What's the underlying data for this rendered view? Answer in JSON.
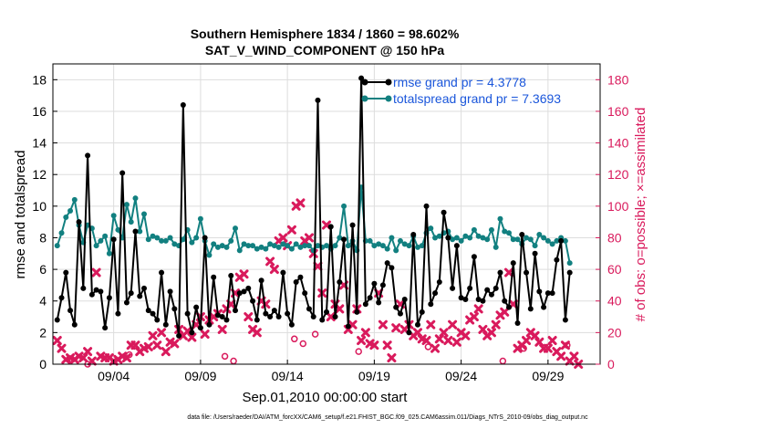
{
  "chart_data": {
    "type": "line",
    "title_line1": "Southern Hemisphere 1834 / 1860 = 98.602%",
    "title_line2": "SAT_V_WIND_COMPONENT @ 150 hPa",
    "xlabel": "Sep.01,2010 00:00:00 start",
    "ylabel": "rmse and totalspread",
    "ylabel_right": "# of obs: o=possible; ×=assimilated",
    "xlim": [
      0,
      31.5
    ],
    "ylim": [
      0,
      19
    ],
    "ylim_right": [
      0,
      190
    ],
    "x_ticks": [
      3.5,
      8.5,
      13.5,
      18.5,
      23.5,
      28.5
    ],
    "x_tick_labels": [
      "09/04",
      "09/09",
      "09/14",
      "09/19",
      "09/24",
      "09/29"
    ],
    "y_ticks": [
      0,
      2,
      4,
      6,
      8,
      10,
      12,
      14,
      16,
      18
    ],
    "y_tick_labels": [
      "0",
      "2",
      "4",
      "6",
      "8",
      "10",
      "12",
      "14",
      "16",
      "18"
    ],
    "y2_ticks": [
      0,
      20,
      40,
      60,
      80,
      100,
      120,
      140,
      160,
      180
    ],
    "y2_tick_labels": [
      "0",
      "20",
      "40",
      "60",
      "80",
      "100",
      "120",
      "140",
      "160",
      "180"
    ],
    "grid": true,
    "legend_position": "top-right",
    "series": [
      {
        "name": "rmse grand pr = 4.3778",
        "color": "#000000",
        "axis": "left",
        "step": 0.25,
        "values": [
          2.8,
          4.2,
          5.8,
          3.4,
          2.5,
          9.0,
          4.8,
          13.2,
          4.4,
          4.7,
          4.6,
          2.3,
          4.2,
          7.9,
          3.2,
          12.1,
          3.9,
          4.5,
          8.4,
          4.3,
          4.8,
          3.4,
          3.2,
          2.8,
          5.8,
          2.5,
          4.6,
          3.5,
          1.8,
          16.4,
          3.2,
          2.0,
          3.6,
          2.3,
          8.0,
          2.5,
          5.5,
          3.1,
          3.0,
          2.8,
          5.6,
          3.4,
          4.5,
          4.6,
          4.8,
          4.0,
          2.8,
          5.3,
          3.2,
          3.0,
          3.4,
          3.0,
          5.8,
          3.2,
          2.5,
          5.2,
          5.5,
          4.5,
          3.5,
          3.0,
          16.7,
          2.8,
          3.3,
          8.7,
          3.0,
          5.2,
          7.9,
          2.4,
          8.8,
          3.3,
          18.1,
          3.8,
          4.2,
          5.1,
          3.9,
          5.0,
          6.4,
          6.1,
          3.6,
          3.2,
          4.1,
          2.0,
          8.2,
          2.5,
          3.3,
          10.0,
          3.8,
          4.5,
          5.2,
          9.6,
          8.0,
          4.8,
          7.5,
          4.2,
          4.1,
          4.8,
          6.8,
          4.1,
          4.0,
          4.7,
          4.4,
          4.8,
          5.8,
          4.0,
          3.6,
          6.4,
          2.6,
          8.2,
          5.8,
          3.5,
          7.0,
          4.6,
          3.6,
          4.5,
          4.5,
          6.6,
          7.8,
          2.8,
          5.8
        ]
      },
      {
        "name": "totalspread grand pr = 7.3693",
        "color": "#128080",
        "axis": "left",
        "step": 0.25,
        "values": [
          7.5,
          8.3,
          9.3,
          9.7,
          10.4,
          8.8,
          7.7,
          8.8,
          8.6,
          7.5,
          7.8,
          8.1,
          7.0,
          9.4,
          8.5,
          8.0,
          10.1,
          9.0,
          10.5,
          8.4,
          9.5,
          7.9,
          8.1,
          8.0,
          7.8,
          7.8,
          8.0,
          7.6,
          7.5,
          7.9,
          8.5,
          7.7,
          8.0,
          9.2,
          7.8,
          6.9,
          7.6,
          7.4,
          7.5,
          7.4,
          7.8,
          8.6,
          7.2,
          7.6,
          7.5,
          7.5,
          7.3,
          7.4,
          7.3,
          7.6,
          7.5,
          7.4,
          7.6,
          7.5,
          7.3,
          7.6,
          7.4,
          7.5,
          7.5,
          7.2,
          7.5,
          7.4,
          7.5,
          7.3,
          7.5,
          8.0,
          10.0,
          7.5,
          7.8,
          7.2,
          11.2,
          7.8,
          7.8,
          7.5,
          7.6,
          7.5,
          7.3,
          8.0,
          7.2,
          7.8,
          7.6,
          7.5,
          8.1,
          7.4,
          7.5,
          8.3,
          8.6,
          8.0,
          8.1,
          8.3,
          8.4,
          7.9,
          8.0,
          7.8,
          8.1,
          8.0,
          8.5,
          8.1,
          8.0,
          7.9,
          8.5,
          7.4,
          9.2,
          8.4,
          8.3,
          7.9,
          7.9,
          7.6,
          8.0,
          7.9,
          7.5,
          8.2,
          8.0,
          7.8,
          7.6,
          7.8,
          8.0,
          7.8,
          6.4
        ]
      },
      {
        "name": "obs assimilated",
        "color": "#d91a5c",
        "axis": "right",
        "step": 0.25,
        "values": [
          15,
          10,
          3,
          4,
          3,
          5,
          4,
          8,
          2,
          58,
          5,
          4,
          4,
          2,
          3,
          5,
          4,
          12,
          12,
          8,
          10,
          11,
          18,
          12,
          20,
          8,
          14,
          13,
          22,
          18,
          21,
          17,
          25,
          30,
          19,
          28,
          30,
          32,
          22,
          35,
          38,
          45,
          55,
          57,
          30,
          22,
          20,
          40,
          38,
          65,
          60,
          78,
          80,
          75,
          85,
          100,
          102,
          78,
          80,
          70,
          62,
          45,
          88,
          30,
          38,
          35,
          50,
          22,
          25,
          35,
          15,
          20,
          13,
          12,
          45,
          25,
          12,
          4,
          23,
          38,
          22,
          25,
          18,
          20,
          16,
          15,
          25,
          10,
          16,
          20,
          15,
          25,
          14,
          20,
          18,
          28,
          30,
          35,
          22,
          18,
          20,
          25,
          31,
          33,
          58,
          38,
          10,
          12,
          15,
          20,
          18,
          14,
          10,
          10,
          15,
          8,
          5,
          12,
          2,
          5,
          0
        ]
      },
      {
        "name": "obs possible",
        "color": "#d91a5c",
        "axis": "right",
        "x": [
          1.1,
          2.0,
          4.4,
          9.9,
          10.4,
          13.9,
          14.4,
          15.1,
          17.6,
          21.6,
          25.9,
          27.1,
          29.6
        ],
        "values": [
          3,
          0,
          6,
          5,
          2,
          16,
          13,
          19,
          8,
          11,
          2,
          10,
          12
        ]
      }
    ],
    "footer": "data file: /Users/raeder/DAI/ATM_forcXX/CAM6_setup/f.e21.FHIST_BGC.f09_025.CAM6assim.011/Diags_NTrS_2010-09/obs_diag_output.nc"
  }
}
